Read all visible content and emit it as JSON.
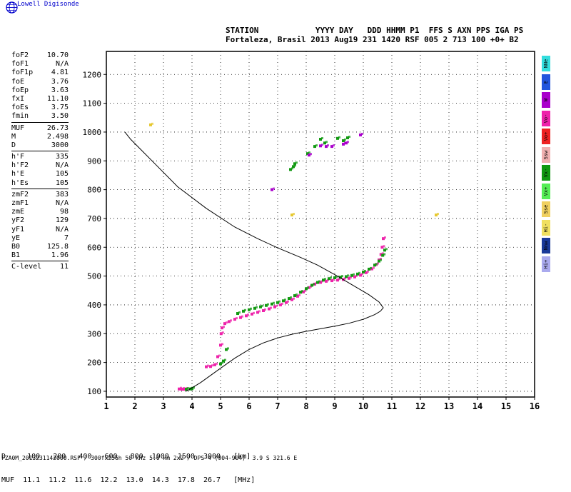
{
  "brand": {
    "name": "Lowell Digisonde"
  },
  "header": {
    "labels": "STATION            YYYY DAY   DDD HHMM P1  FFS S AXN PPS IGA PS",
    "values": "Fortaleza, Brasil 2013 Aug19 231 1420 RSF 005 2 713 100 +0+ B2"
  },
  "params": {
    "group1": [
      {
        "name": "foF2",
        "value": "10.70"
      },
      {
        "name": "foF1",
        "value": "N/A"
      },
      {
        "name": "foF1p",
        "value": "4.81"
      },
      {
        "name": "foE",
        "value": "3.76"
      },
      {
        "name": "foEp",
        "value": "3.63"
      },
      {
        "name": "fxI",
        "value": "11.10"
      },
      {
        "name": "foEs",
        "value": "3.75"
      },
      {
        "name": "fmin",
        "value": "3.50"
      }
    ],
    "group2": [
      {
        "name": "MUF",
        "value": "26.73"
      },
      {
        "name": "M",
        "value": "2.498"
      },
      {
        "name": "D",
        "value": "3000"
      }
    ],
    "group3": [
      {
        "name": "h'F",
        "value": "335"
      },
      {
        "name": "h'F2",
        "value": "N/A"
      },
      {
        "name": "h'E",
        "value": "105"
      },
      {
        "name": "h'Es",
        "value": "105"
      }
    ],
    "group4": [
      {
        "name": "zmF2",
        "value": "383"
      },
      {
        "name": "zmF1",
        "value": "N/A"
      },
      {
        "name": "zmE",
        "value": "98"
      },
      {
        "name": "yF2",
        "value": "129"
      },
      {
        "name": "yF1",
        "value": "N/A"
      },
      {
        "name": "yE",
        "value": "7"
      },
      {
        "name": "B0",
        "value": "125.8"
      },
      {
        "name": "B1",
        "value": "1.96"
      }
    ],
    "group5": [
      {
        "name": "C-level",
        "value": "11"
      }
    ]
  },
  "modes": [
    {
      "label": "NNe",
      "color": "#33dddd"
    },
    {
      "label": "E",
      "color": "#2255dd"
    },
    {
      "label": "W",
      "color": "#aa00cc"
    },
    {
      "label": "Vo-",
      "color": "#ee22aa"
    },
    {
      "label": "Vo+",
      "color": "#ee2222"
    },
    {
      "label": "Ssw",
      "color": "#f0b0b0"
    },
    {
      "label": "Vx-",
      "color": "#119911"
    },
    {
      "label": "Vx+",
      "color": "#55ee55"
    },
    {
      "label": "Sse",
      "color": "#f0d060"
    },
    {
      "label": "Hi-",
      "color": "#f0e060"
    },
    {
      "label": "Nnw",
      "color": "#1a3a99"
    },
    {
      "label": "Hi+",
      "color": "#aaaaee"
    }
  ],
  "muf_table": {
    "row1": "D     100   200   400   600   800  1000  1500  3000   [km]",
    "row2": "MUF  11.1  11.2  11.6  12.2  13.0  14.3  17.8  26.7   [MHz]"
  },
  "footer": "FZA0M_2013231142000.RSF / 300fx256h 50 kHz 5.0 km 2x2 / DPS-4 (904-904)  3.9 S 321.6 E",
  "chart_data": {
    "type": "scatter",
    "x_range": [
      1,
      16
    ],
    "y_range": [
      80,
      1280
    ],
    "x_ticks": [
      1,
      2,
      3,
      4,
      5,
      6,
      7,
      8,
      9,
      10,
      11,
      12,
      13,
      14,
      15,
      16
    ],
    "y_ticks": [
      100,
      200,
      300,
      400,
      500,
      600,
      700,
      800,
      900,
      1000,
      1100,
      1200
    ],
    "grid": true,
    "profile": [
      [
        3.8,
        100
      ],
      [
        4.3,
        130
      ],
      [
        5.0,
        180
      ],
      [
        5.5,
        215
      ],
      [
        6.0,
        245
      ],
      [
        6.5,
        268
      ],
      [
        7.0,
        285
      ],
      [
        7.5,
        298
      ],
      [
        8.0,
        308
      ],
      [
        8.5,
        317
      ],
      [
        9.0,
        326
      ],
      [
        9.5,
        336
      ],
      [
        10.0,
        350
      ],
      [
        10.4,
        366
      ],
      [
        10.6,
        378
      ],
      [
        10.7,
        390
      ],
      [
        10.55,
        410
      ],
      [
        10.2,
        435
      ],
      [
        9.6,
        470
      ],
      [
        9.0,
        505
      ],
      [
        8.4,
        538
      ],
      [
        7.8,
        565
      ],
      [
        7.0,
        598
      ],
      [
        6.3,
        630
      ],
      [
        5.5,
        670
      ],
      [
        4.5,
        735
      ],
      [
        3.5,
        810
      ],
      [
        2.8,
        880
      ],
      [
        2.2,
        940
      ],
      [
        1.85,
        975
      ],
      [
        1.65,
        1000
      ]
    ],
    "series": [
      {
        "name": "O-trace",
        "color": "#ee22aa",
        "points": [
          [
            3.55,
            108
          ],
          [
            3.65,
            107
          ],
          [
            3.75,
            107
          ],
          [
            4.5,
            185
          ],
          [
            4.65,
            186
          ],
          [
            4.8,
            192
          ],
          [
            4.9,
            220
          ],
          [
            5.0,
            260
          ],
          [
            5.02,
            300
          ],
          [
            5.05,
            320
          ],
          [
            5.15,
            335
          ],
          [
            5.3,
            342
          ],
          [
            5.5,
            350
          ],
          [
            5.7,
            356
          ],
          [
            5.9,
            362
          ],
          [
            6.1,
            368
          ],
          [
            6.3,
            374
          ],
          [
            6.5,
            380
          ],
          [
            6.7,
            386
          ],
          [
            6.9,
            393
          ],
          [
            7.1,
            400
          ],
          [
            7.3,
            408
          ],
          [
            7.5,
            418
          ],
          [
            7.7,
            430
          ],
          [
            7.9,
            445
          ],
          [
            8.1,
            460
          ],
          [
            8.3,
            472
          ],
          [
            8.5,
            478
          ],
          [
            8.7,
            482
          ],
          [
            8.9,
            484
          ],
          [
            9.1,
            486
          ],
          [
            9.3,
            488
          ],
          [
            9.5,
            492
          ],
          [
            9.7,
            497
          ],
          [
            9.9,
            503
          ],
          [
            10.1,
            512
          ],
          [
            10.3,
            525
          ],
          [
            10.45,
            540
          ],
          [
            10.55,
            556
          ],
          [
            10.62,
            575
          ],
          [
            10.66,
            600
          ],
          [
            10.7,
            630
          ]
        ]
      },
      {
        "name": "X-trace",
        "color": "#119911",
        "points": [
          [
            3.8,
            107
          ],
          [
            3.95,
            108
          ],
          [
            4.0,
            109
          ],
          [
            5.0,
            195
          ],
          [
            5.1,
            205
          ],
          [
            5.2,
            245
          ],
          [
            5.6,
            370
          ],
          [
            5.8,
            378
          ],
          [
            6.0,
            383
          ],
          [
            6.2,
            388
          ],
          [
            6.4,
            393
          ],
          [
            6.6,
            398
          ],
          [
            6.8,
            403
          ],
          [
            7.0,
            408
          ],
          [
            7.2,
            414
          ],
          [
            7.4,
            422
          ],
          [
            7.6,
            432
          ],
          [
            7.8,
            444
          ],
          [
            8.0,
            456
          ],
          [
            8.2,
            468
          ],
          [
            8.4,
            478
          ],
          [
            8.6,
            486
          ],
          [
            8.8,
            491
          ],
          [
            9.0,
            494
          ],
          [
            9.2,
            496
          ],
          [
            9.4,
            498
          ],
          [
            9.6,
            502
          ],
          [
            9.8,
            507
          ],
          [
            10.0,
            514
          ],
          [
            10.2,
            524
          ],
          [
            10.4,
            538
          ],
          [
            10.55,
            552
          ],
          [
            10.68,
            572
          ],
          [
            10.75,
            590
          ],
          [
            7.45,
            870
          ],
          [
            7.55,
            880
          ],
          [
            7.6,
            890
          ],
          [
            8.05,
            925
          ],
          [
            8.3,
            950
          ],
          [
            8.5,
            975
          ],
          [
            8.65,
            962
          ],
          [
            9.1,
            978
          ],
          [
            9.3,
            970
          ],
          [
            9.45,
            980
          ]
        ]
      },
      {
        "name": "Other echoes",
        "color": "#aa00cc",
        "points": [
          [
            6.8,
            800
          ],
          [
            8.1,
            920
          ],
          [
            8.5,
            952
          ],
          [
            8.7,
            950
          ],
          [
            8.9,
            950
          ],
          [
            9.3,
            958
          ],
          [
            9.4,
            962
          ],
          [
            9.9,
            990
          ]
        ]
      },
      {
        "name": "Faint echoes",
        "color": "#e6c830",
        "points": [
          [
            2.55,
            1025
          ],
          [
            7.5,
            712
          ],
          [
            12.55,
            712
          ]
        ]
      }
    ]
  }
}
